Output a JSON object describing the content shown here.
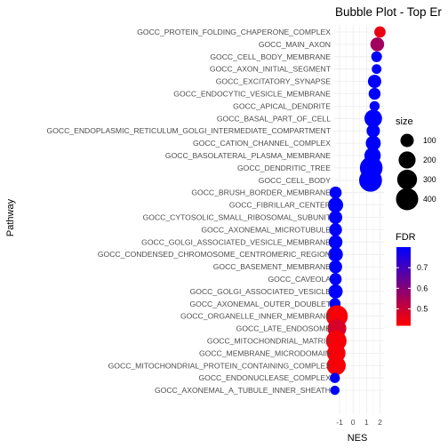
{
  "chart_data": {
    "type": "scatter",
    "subtype": "bubble",
    "title": "Bubble Plot - Top Er",
    "xlabel": "NES",
    "ylabel": "Pathway",
    "xlim": [
      -1.4,
      2.3
    ],
    "x_ticks": [
      -1,
      0,
      1,
      2
    ],
    "x_tick_labels": [
      "-1",
      "0",
      "1",
      "2"
    ],
    "grid": true,
    "categories": [
      "GOCC_PROTEIN_FOLDING_CHAPERONE_COMPLEX",
      "GOCC_MAIN_AXON",
      "GOCC_CELL_BODY_MEMBRANE",
      "GOCC_AXON_INITIAL_SEGMENT",
      "GOCC_EXCITATORY_SYNAPSE",
      "GOCC_ENDOCYTIC_VESICLE_MEMBRANE",
      "GOCC_APICAL_DENDRITE",
      "GOCC_BASAL_PART_OF_CELL",
      "GOCC_ENDOPLASMIC_RETICULUM_GOLGI_INTERMEDIATE_COMPARTMENT",
      "GOCC_CATION_CHANNEL_COMPLEX",
      "GOCC_BASOLATERAL_PLASMA_MEMBRANE",
      "GOCC_DENDRITIC_TREE",
      "GOCC_CELL_BODY",
      "GOCC_BRUSH_BORDER_MEMBRANE",
      "GOCC_FIBRILLAR_CENTER",
      "GOCC_CYTOSOLIC_SMALL_RIBOSOMAL_SUBUNIT",
      "GOCC_AXONEMAL_MICROTUBULE",
      "GOCC_GOLGI_ASSOCIATED_VESICLE_MEMBRANE",
      "GOCC_CONDENSED_CHROMOSOME_CENTROMERIC_REGION",
      "GOCC_BASEMENT_MEMBRANE",
      "GOCC_CAVEOLA",
      "GOCC_GOLGI_ASSOCIATED_VESICLE",
      "GOCC_AXONEMAL_OUTER_DOUBLET",
      "GOCC_ORGANELLE_INNER_MEMBRANE",
      "GOCC_LATE_ENDOSOME",
      "GOCC_MITOCHONDRIAL_MATRIX",
      "GOCC_MEMBRANE_MICRODOMAIN",
      "GOCC_MITOCHONDRIAL_PROTEIN_CONTAINING_COMPLEX",
      "GOCC_ENDONUCLEASE_COMPLEX",
      "GOCC_AXONEMAL_A_TUBULE_INNER_SHEATH"
    ],
    "points": [
      {
        "pathway": "GOCC_PROTEIN_FOLDING_CHAPERONE_COMPLEX",
        "nes": 2.0,
        "size": 60,
        "fdr": 0.45
      },
      {
        "pathway": "GOCC_MAIN_AXON",
        "nes": 1.8,
        "size": 110,
        "fdr": 0.56
      },
      {
        "pathway": "GOCC_CELL_BODY_MEMBRANE",
        "nes": 1.75,
        "size": 50,
        "fdr": 0.8
      },
      {
        "pathway": "GOCC_AXON_INITIAL_SEGMENT",
        "nes": 1.75,
        "size": 35,
        "fdr": 0.8
      },
      {
        "pathway": "GOCC_EXCITATORY_SYNAPSE",
        "nes": 1.6,
        "size": 100,
        "fdr": 0.8
      },
      {
        "pathway": "GOCC_ENDOCYTIC_VESICLE_MEMBRANE",
        "nes": 1.6,
        "size": 70,
        "fdr": 0.8
      },
      {
        "pathway": "GOCC_APICAL_DENDRITE",
        "nes": 1.6,
        "size": 40,
        "fdr": 0.8
      },
      {
        "pathway": "GOCC_BASAL_PART_OF_CELL",
        "nes": 1.5,
        "size": 220,
        "fdr": 0.8
      },
      {
        "pathway": "GOCC_ENDOPLASMIC_RETICULUM_GOLGI_INTERMEDIATE_COMPARTMENT",
        "nes": 1.5,
        "size": 100,
        "fdr": 0.8
      },
      {
        "pathway": "GOCC_CATION_CHANNEL_COMPLEX",
        "nes": 1.5,
        "size": 140,
        "fdr": 0.8
      },
      {
        "pathway": "GOCC_BASOLATERAL_PLASMA_MEMBRANE",
        "nes": 1.45,
        "size": 180,
        "fdr": 0.8
      },
      {
        "pathway": "GOCC_DENDRITIC_TREE",
        "nes": 1.35,
        "size": 420,
        "fdr": 0.8
      },
      {
        "pathway": "GOCC_CELL_BODY",
        "nes": 1.3,
        "size": 430,
        "fdr": 0.8
      },
      {
        "pathway": "GOCC_BRUSH_BORDER_MEMBRANE",
        "nes": -1.3,
        "size": 75,
        "fdr": 0.8
      },
      {
        "pathway": "GOCC_FIBRILLAR_CENTER",
        "nes": -1.3,
        "size": 145,
        "fdr": 0.8
      },
      {
        "pathway": "GOCC_CYTOSOLIC_SMALL_RIBOSOMAL_SUBUNIT",
        "nes": -1.3,
        "size": 100,
        "fdr": 0.8
      },
      {
        "pathway": "GOCC_AXONEMAL_MICROTUBULE",
        "nes": -1.3,
        "size": 90,
        "fdr": 0.8
      },
      {
        "pathway": "GOCC_GOLGI_ASSOCIATED_VESICLE_MEMBRANE",
        "nes": -1.3,
        "size": 110,
        "fdr": 0.8
      },
      {
        "pathway": "GOCC_CONDENSED_CHROMOSOME_CENTROMERIC_REGION",
        "nes": -1.3,
        "size": 130,
        "fdr": 0.8
      },
      {
        "pathway": "GOCC_BASEMENT_MEMBRANE",
        "nes": -1.3,
        "size": 95,
        "fdr": 0.8
      },
      {
        "pathway": "GOCC_CAVEOLA",
        "nes": -1.3,
        "size": 75,
        "fdr": 0.8
      },
      {
        "pathway": "GOCC_GOLGI_ASSOCIATED_VESICLE",
        "nes": -1.3,
        "size": 120,
        "fdr": 0.8
      },
      {
        "pathway": "GOCC_AXONEMAL_OUTER_DOUBLET",
        "nes": -1.35,
        "size": 60,
        "fdr": 0.8
      },
      {
        "pathway": "GOCC_ORGANELLE_INNER_MEMBRANE",
        "nes": -1.2,
        "size": 380,
        "fdr": 0.43
      },
      {
        "pathway": "GOCC_LATE_ENDOSOME",
        "nes": -1.2,
        "size": 260,
        "fdr": 0.48
      },
      {
        "pathway": "GOCC_MITOCHONDRIAL_MATRIX",
        "nes": -1.25,
        "size": 330,
        "fdr": 0.43
      },
      {
        "pathway": "GOCC_MEMBRANE_MICRODOMAIN",
        "nes": -1.25,
        "size": 250,
        "fdr": 0.43
      },
      {
        "pathway": "GOCC_MITOCHONDRIAL_PROTEIN_CONTAINING_COMPLEX",
        "nes": -1.25,
        "size": 270,
        "fdr": 0.43
      },
      {
        "pathway": "GOCC_ENDONUCLEASE_COMPLEX",
        "nes": -1.35,
        "size": 40,
        "fdr": 0.8
      },
      {
        "pathway": "GOCC_AXONEMAL_A_TUBULE_INNER_SHEATH",
        "nes": -1.35,
        "size": 30,
        "fdr": 0.8
      }
    ],
    "size_legend": {
      "title": "size",
      "breaks": [
        100,
        200,
        300,
        400
      ],
      "labels": [
        "100",
        "200",
        "300",
        "400"
      ],
      "placement": "right"
    },
    "color_legend": {
      "title": "FDR",
      "low_color": "#ff0000",
      "high_color": "#0000ff",
      "range": [
        0.42,
        0.8
      ],
      "breaks": [
        0.5,
        0.6,
        0.7
      ],
      "labels": [
        "0.5",
        "0.6",
        "0.7"
      ],
      "placement": "right"
    },
    "colors": {
      "panel_background": "#ffffff",
      "grid_color": "#ebebeb"
    }
  }
}
